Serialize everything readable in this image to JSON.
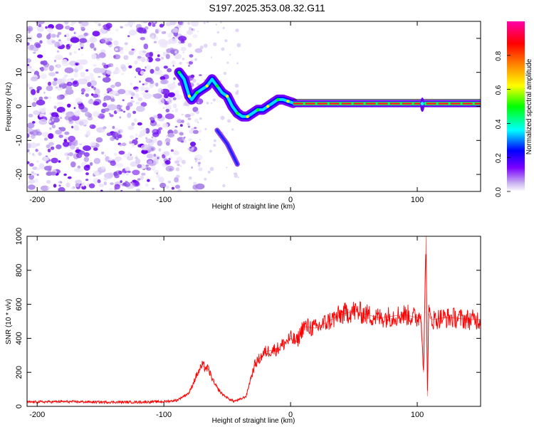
{
  "title": "S197.2025.353.08.32.G11",
  "chart_data": [
    {
      "type": "heatmap",
      "xlabel": "Height of straight line (km)",
      "ylabel": "Frequency (Hz)",
      "xlim": [
        -208,
        150
      ],
      "ylim": [
        -25,
        25
      ],
      "xticks": [
        -200,
        -100,
        0,
        100
      ],
      "yticks": [
        -20,
        -10,
        0,
        10,
        20
      ],
      "noise_region_x": [
        -208,
        -85
      ],
      "dispersion_track": [
        {
          "x": -88,
          "y": 10
        },
        {
          "x": -84,
          "y": 8
        },
        {
          "x": -80,
          "y": 3
        },
        {
          "x": -78,
          "y": 2
        },
        {
          "x": -74,
          "y": 4
        },
        {
          "x": -70,
          "y": 5
        },
        {
          "x": -66,
          "y": 6
        },
        {
          "x": -62,
          "y": 8
        },
        {
          "x": -58,
          "y": 6
        },
        {
          "x": -54,
          "y": 4
        },
        {
          "x": -50,
          "y": 3
        },
        {
          "x": -46,
          "y": 0
        },
        {
          "x": -42,
          "y": -2
        },
        {
          "x": -38,
          "y": -3
        },
        {
          "x": -34,
          "y": -3
        },
        {
          "x": -30,
          "y": -2
        },
        {
          "x": -26,
          "y": -1
        },
        {
          "x": -22,
          "y": -1
        },
        {
          "x": -18,
          "y": 0
        },
        {
          "x": -14,
          "y": 1
        },
        {
          "x": -10,
          "y": 2
        },
        {
          "x": -6,
          "y": 2
        },
        {
          "x": -2,
          "y": 1.5
        },
        {
          "x": 2,
          "y": 1
        }
      ],
      "steady_line": {
        "x_start": 2,
        "x_end": 150,
        "y": 0.8
      },
      "secondary_branch": [
        {
          "x": -58,
          "y": -7
        },
        {
          "x": -54,
          "y": -9
        },
        {
          "x": -50,
          "y": -11
        },
        {
          "x": -46,
          "y": -14
        },
        {
          "x": -42,
          "y": -17
        }
      ],
      "spike_x": 104,
      "colorbar": {
        "label": "Normalized spectral amplitude",
        "min": 0.0,
        "max": 1.0,
        "ticks": [
          "0.0",
          "0.2",
          "0.4",
          "0.6",
          "0.8"
        ],
        "colors": [
          "#ffffff",
          "#c8b0f0",
          "#7a00ff",
          "#0000ff",
          "#00ffff",
          "#00ff00",
          "#ffff00",
          "#ff8000",
          "#ff0000",
          "#ff00aa"
        ]
      }
    },
    {
      "type": "line",
      "xlabel": "Height of straight line (km)",
      "ylabel": "SNR (10 * v/v)",
      "xlim": [
        -208,
        150
      ],
      "ylim": [
        0,
        1000
      ],
      "xticks": [
        -200,
        -100,
        0,
        100
      ],
      "yticks": [
        0,
        200,
        400,
        600,
        800,
        1000
      ],
      "line_color": "#ff0000",
      "series": [
        {
          "name": "SNR",
          "x": [
            -208,
            -180,
            -150,
            -120,
            -100,
            -90,
            -80,
            -75,
            -70,
            -65,
            -60,
            -55,
            -50,
            -45,
            -40,
            -35,
            -32,
            -28,
            -20,
            -10,
            0,
            5,
            10,
            20,
            30,
            40,
            50,
            60,
            70,
            80,
            90,
            100,
            103,
            105,
            107,
            108,
            109,
            110,
            112,
            120,
            130,
            140,
            150
          ],
          "y": [
            25,
            28,
            25,
            25,
            28,
            35,
            80,
            170,
            240,
            220,
            130,
            80,
            50,
            30,
            40,
            60,
            150,
            250,
            320,
            340,
            400,
            380,
            470,
            460,
            500,
            540,
            560,
            540,
            520,
            530,
            540,
            520,
            540,
            200,
            1000,
            60,
            550,
            520,
            510,
            520,
            520,
            510,
            510
          ]
        }
      ]
    }
  ]
}
